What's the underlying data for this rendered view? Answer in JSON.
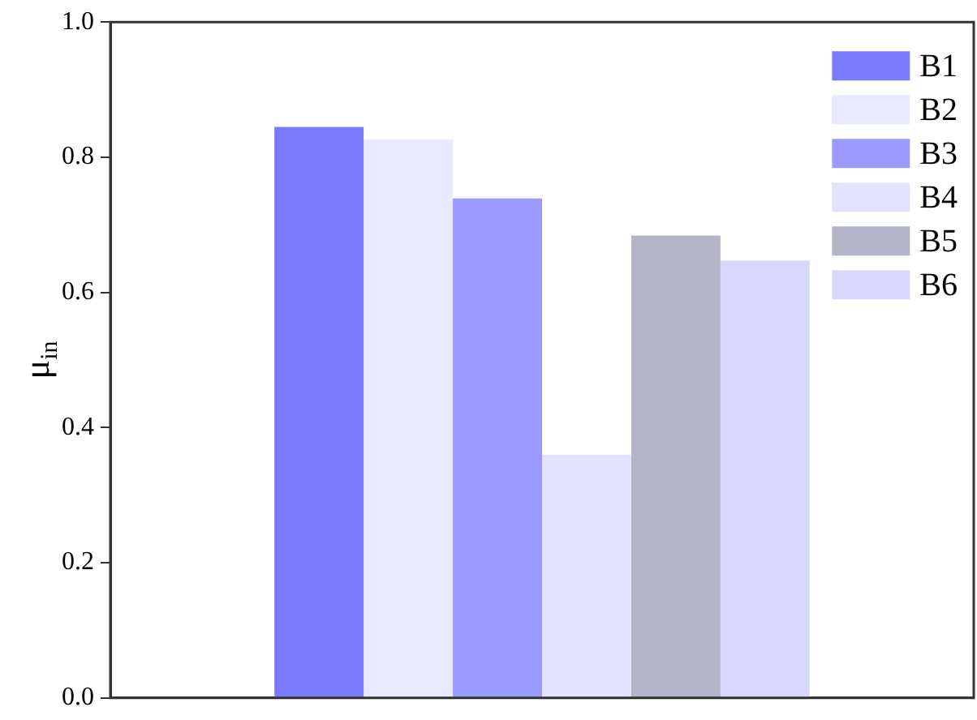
{
  "chart_data": {
    "type": "bar",
    "ylabel": "μ$_{in}$",
    "categories": [
      null
    ],
    "series": [
      {
        "name": "B1",
        "color": "#7a7aff",
        "values": [
          0.845
        ]
      },
      {
        "name": "B2",
        "color": "#e8e8ff",
        "values": [
          0.826
        ]
      },
      {
        "name": "B3",
        "color": "#9a9aff",
        "values": [
          0.739
        ]
      },
      {
        "name": "B4",
        "color": "#e2e2ff",
        "values": [
          0.36
        ]
      },
      {
        "name": "B5",
        "color": "#b4b4c8",
        "values": [
          0.684
        ]
      },
      {
        "name": "B6",
        "color": "#d8d8ff",
        "values": [
          0.647
        ]
      }
    ],
    "ylim": [
      0,
      1
    ],
    "yticks": [
      {
        "value": 0,
        "label": "0.0"
      },
      {
        "value": 0.2,
        "label": "0.2"
      },
      {
        "value": 0.4,
        "label": "0.4"
      },
      {
        "value": 0.6,
        "label": "0.6"
      },
      {
        "value": 0.8,
        "label": "0.8"
      },
      {
        "value": 1,
        "label": "1.0"
      }
    ],
    "grid": false,
    "legend": "top right",
    "tick_labels": "y"
  }
}
